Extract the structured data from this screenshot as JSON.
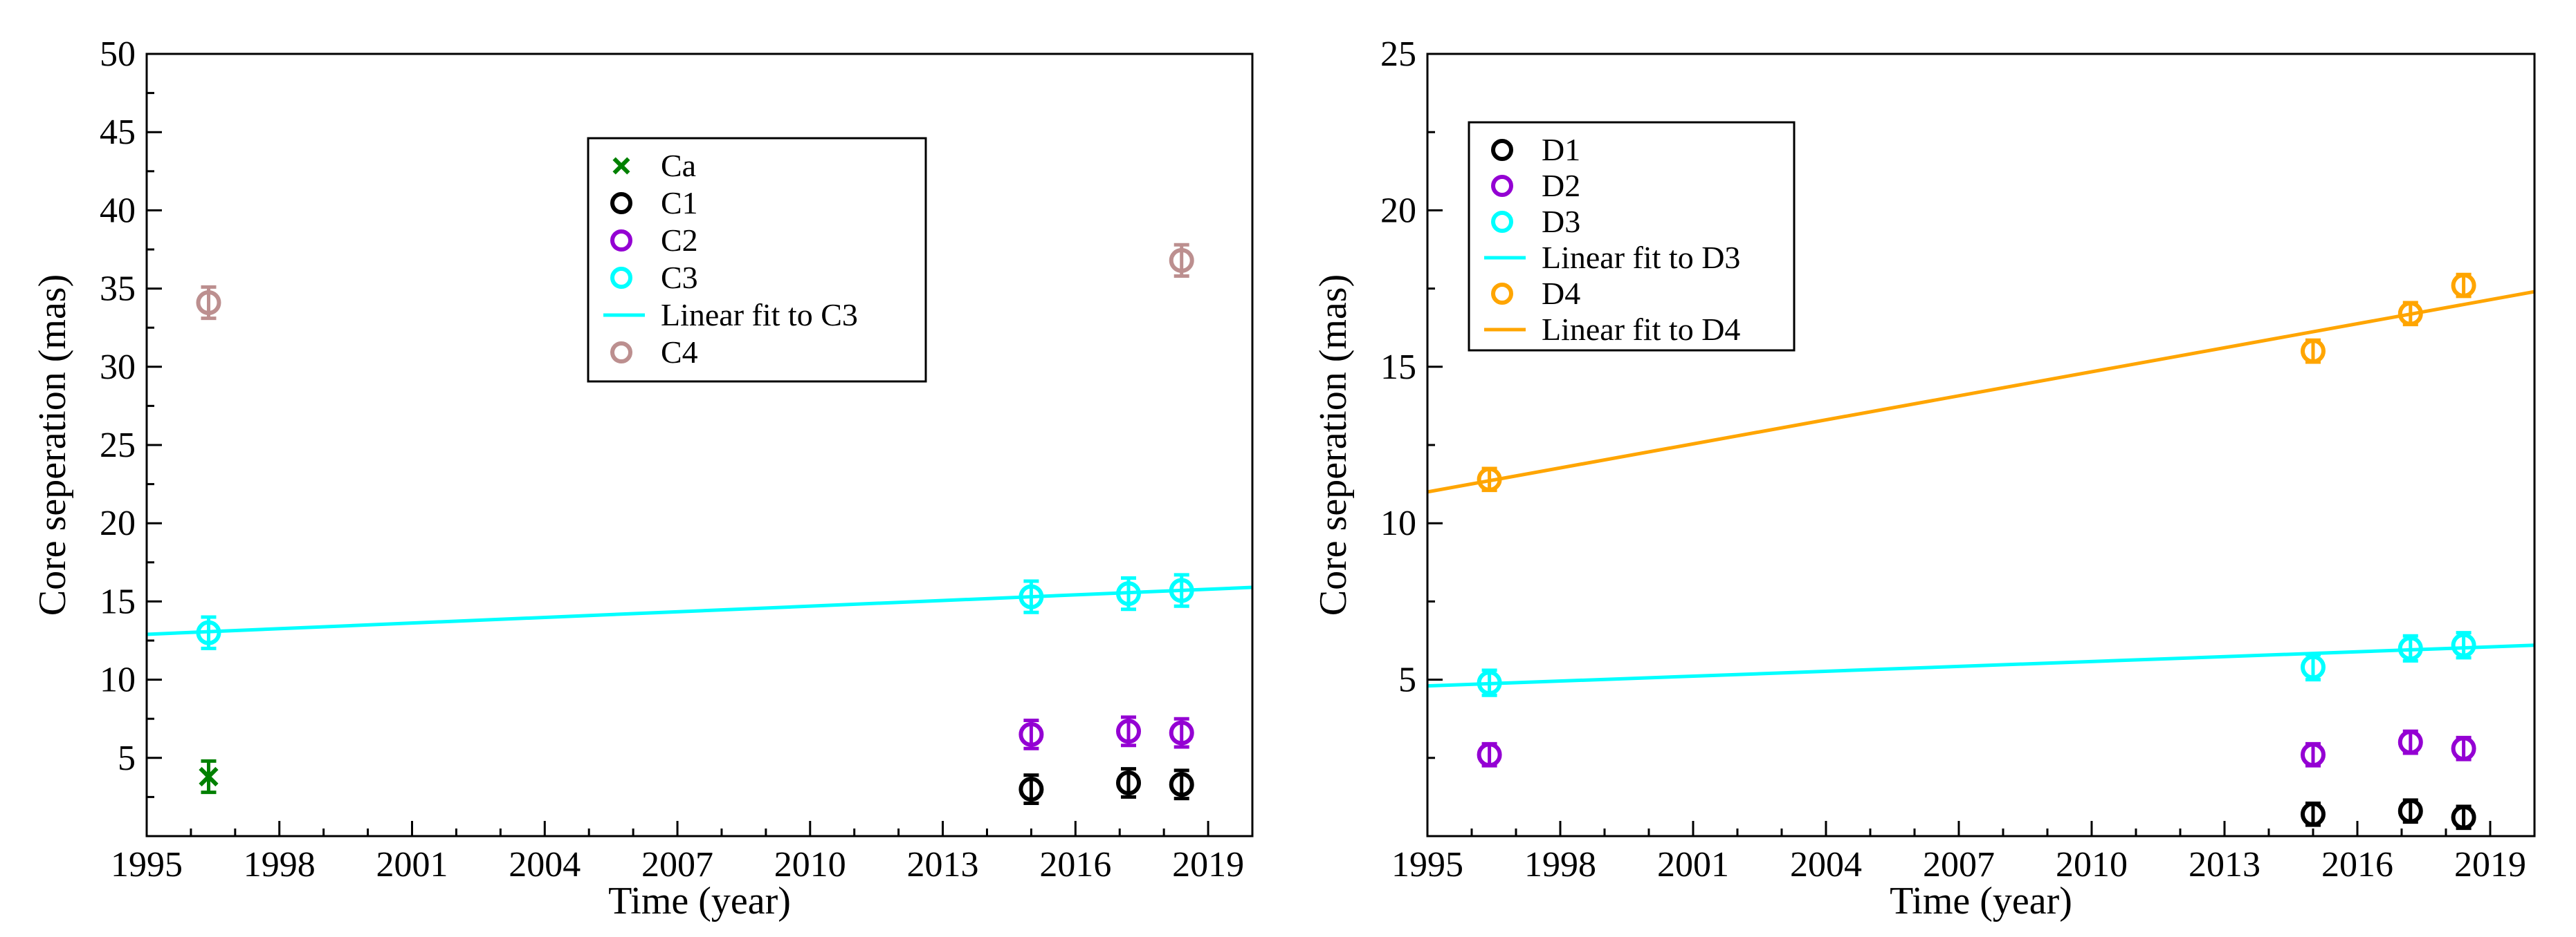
{
  "chart_data": [
    {
      "type": "scatter",
      "title": "",
      "xlabel": "Time (year)",
      "ylabel": "Core seperation (mas)",
      "xlim": [
        1995,
        2020
      ],
      "ylim": [
        0,
        50
      ],
      "xticks": [
        1995,
        1998,
        2001,
        2004,
        2007,
        2010,
        2013,
        2016,
        2019
      ],
      "yticks": [
        5,
        10,
        15,
        20,
        25,
        30,
        35,
        40,
        45,
        50
      ],
      "legend_position": "top-center",
      "series": [
        {
          "name": "Ca",
          "marker": "x",
          "color": "#008000",
          "x": [
            1996.4
          ],
          "y": [
            3.8
          ],
          "err": [
            1.0
          ]
        },
        {
          "name": "C1",
          "marker": "circle",
          "color": "#000000",
          "x": [
            2015.0,
            2017.2,
            2018.4
          ],
          "y": [
            3.0,
            3.4,
            3.3
          ],
          "err": [
            0.9,
            0.9,
            0.9
          ]
        },
        {
          "name": "C2",
          "marker": "circle",
          "color": "#9400d3",
          "x": [
            2015.0,
            2017.2,
            2018.4
          ],
          "y": [
            6.5,
            6.7,
            6.6
          ],
          "err": [
            0.9,
            0.9,
            0.9
          ]
        },
        {
          "name": "C3",
          "marker": "circle",
          "color": "#00ffff",
          "x": [
            1996.4,
            2015.0,
            2017.2,
            2018.4
          ],
          "y": [
            13.0,
            15.3,
            15.5,
            15.7
          ],
          "err": [
            1.0,
            1.0,
            1.0,
            1.0
          ]
        },
        {
          "name": "Linear fit to C3",
          "marker": "line",
          "color": "#00ffff",
          "x": [
            1995,
            2020
          ],
          "y": [
            12.9,
            15.9
          ]
        },
        {
          "name": "C4",
          "marker": "circle",
          "color": "#bc8f8f",
          "x": [
            1996.4,
            2018.4
          ],
          "y": [
            34.1,
            36.8
          ],
          "err": [
            1.0,
            1.0
          ]
        }
      ]
    },
    {
      "type": "scatter",
      "title": "",
      "xlabel": "Time (year)",
      "ylabel": "Core seperation (mas)",
      "xlim": [
        1995,
        2020
      ],
      "ylim": [
        0,
        25
      ],
      "xticks": [
        1995,
        1998,
        2001,
        2004,
        2007,
        2010,
        2013,
        2016,
        2019
      ],
      "yticks": [
        5,
        10,
        15,
        20,
        25
      ],
      "legend_position": "top-left",
      "series": [
        {
          "name": "D1",
          "marker": "circle",
          "color": "#000000",
          "x": [
            2015.0,
            2017.2,
            2018.4
          ],
          "y": [
            0.7,
            0.8,
            0.6
          ],
          "err": [
            0.35,
            0.35,
            0.35
          ]
        },
        {
          "name": "D2",
          "marker": "circle",
          "color": "#9400d3",
          "x": [
            1996.4,
            2015.0,
            2017.2,
            2018.4
          ],
          "y": [
            2.6,
            2.6,
            3.0,
            2.8
          ],
          "err": [
            0.35,
            0.35,
            0.35,
            0.35
          ]
        },
        {
          "name": "D3",
          "marker": "circle",
          "color": "#00ffff",
          "x": [
            1996.4,
            2015.0,
            2017.2,
            2018.4
          ],
          "y": [
            4.9,
            5.4,
            6.0,
            6.1
          ],
          "err": [
            0.4,
            0.4,
            0.4,
            0.4
          ]
        },
        {
          "name": "Linear fit to D3",
          "marker": "line",
          "color": "#00ffff",
          "x": [
            1995,
            2020
          ],
          "y": [
            4.8,
            6.1
          ]
        },
        {
          "name": "D4",
          "marker": "circle",
          "color": "#ffa500",
          "x": [
            1996.4,
            2015.0,
            2017.2,
            2018.4
          ],
          "y": [
            11.4,
            15.5,
            16.7,
            17.6
          ],
          "err": [
            0.35,
            0.35,
            0.35,
            0.35
          ]
        },
        {
          "name": "Linear fit to D4",
          "marker": "line",
          "color": "#ffa500",
          "x": [
            1995,
            2020
          ],
          "y": [
            11.0,
            17.4
          ]
        }
      ]
    }
  ]
}
